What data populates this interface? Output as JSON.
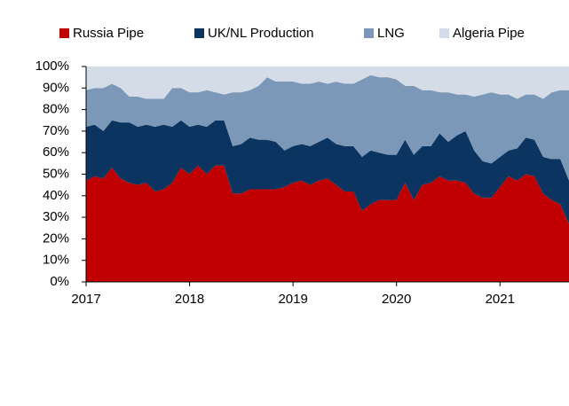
{
  "chart_data": {
    "type": "stacked_area",
    "x": [
      2017,
      2017.083,
      2017.167,
      2017.25,
      2017.333,
      2017.417,
      2017.5,
      2017.583,
      2017.667,
      2017.75,
      2017.833,
      2017.917,
      2018,
      2018.083,
      2018.167,
      2018.25,
      2018.333,
      2018.417,
      2018.5,
      2018.583,
      2018.667,
      2018.75,
      2018.833,
      2018.917,
      2019,
      2019.083,
      2019.167,
      2019.25,
      2019.333,
      2019.417,
      2019.5,
      2019.583,
      2019.667,
      2019.75,
      2019.833,
      2019.917,
      2020,
      2020.083,
      2020.167,
      2020.25,
      2020.333,
      2020.417,
      2020.5,
      2020.583,
      2020.667,
      2020.75,
      2020.833,
      2020.917,
      2021,
      2021.083,
      2021.167,
      2021.25,
      2021.333,
      2021.417,
      2021.5,
      2021.583,
      2021.667
    ],
    "series": [
      {
        "name": "Russia Pipe",
        "color": "#c00000",
        "values": [
          47,
          49,
          48,
          53,
          48,
          46,
          45,
          46,
          42,
          43,
          46,
          53,
          50,
          54,
          50,
          54,
          54,
          41,
          41,
          43,
          43,
          43,
          43,
          44,
          46,
          47,
          45,
          47,
          48,
          45,
          42,
          42,
          33,
          36,
          38,
          38,
          38,
          46,
          38,
          45,
          46,
          49,
          47,
          47,
          46,
          41,
          39,
          39,
          44,
          49,
          47,
          50,
          49,
          41,
          38,
          36,
          27
        ]
      },
      {
        "name": "UK/NL Production",
        "color": "#0b3560",
        "values": [
          25,
          24,
          22,
          22,
          26,
          28,
          27,
          27,
          30,
          30,
          26,
          22,
          22,
          19,
          22,
          21,
          21,
          22,
          23,
          24,
          23,
          23,
          22,
          17,
          17,
          17,
          18,
          18,
          19,
          19,
          21,
          21,
          25,
          25,
          22,
          21,
          21,
          20,
          21,
          18,
          17,
          20,
          18,
          21,
          24,
          20,
          17,
          16,
          14,
          12,
          15,
          17,
          17,
          17,
          19,
          21,
          20
        ]
      },
      {
        "name": "LNG",
        "color": "#7b98b8",
        "values": [
          17,
          17,
          20,
          17,
          16,
          12,
          14,
          12,
          13,
          12,
          18,
          15,
          16,
          15,
          17,
          13,
          12,
          25,
          24,
          22,
          25,
          29,
          28,
          32,
          30,
          28,
          29,
          28,
          25,
          29,
          29,
          29,
          36,
          35,
          35,
          36,
          35,
          25,
          32,
          26,
          26,
          19,
          23,
          19,
          17,
          25,
          31,
          33,
          29,
          26,
          23,
          20,
          21,
          27,
          31,
          32,
          42
        ]
      },
      {
        "name": "Algeria Pipe",
        "color": "#d4dce8",
        "values": [
          11,
          10,
          10,
          8,
          10,
          14,
          14,
          15,
          15,
          15,
          10,
          10,
          12,
          12,
          11,
          12,
          13,
          12,
          12,
          11,
          9,
          5,
          7,
          7,
          7,
          8,
          8,
          7,
          8,
          7,
          8,
          8,
          6,
          4,
          5,
          5,
          6,
          9,
          9,
          11,
          11,
          12,
          12,
          13,
          13,
          14,
          13,
          12,
          13,
          13,
          15,
          13,
          13,
          15,
          12,
          11,
          11
        ]
      }
    ],
    "xlim": [
      2017,
      2021.667
    ],
    "xticks": [
      2017,
      2018,
      2019,
      2020,
      2021
    ],
    "ylim": [
      0,
      100
    ],
    "yticks": [
      {
        "value": 0,
        "label": "0%"
      },
      {
        "value": 10,
        "label": "10%"
      },
      {
        "value": 20,
        "label": "20%"
      },
      {
        "value": 30,
        "label": "30%"
      },
      {
        "value": 40,
        "label": "40%"
      },
      {
        "value": 50,
        "label": "50%"
      },
      {
        "value": 60,
        "label": "60%"
      },
      {
        "value": 70,
        "label": "70%"
      },
      {
        "value": 80,
        "label": "80%"
      },
      {
        "value": 90,
        "label": "90%"
      },
      {
        "value": 100,
        "label": "100%"
      }
    ],
    "legend": "top"
  }
}
